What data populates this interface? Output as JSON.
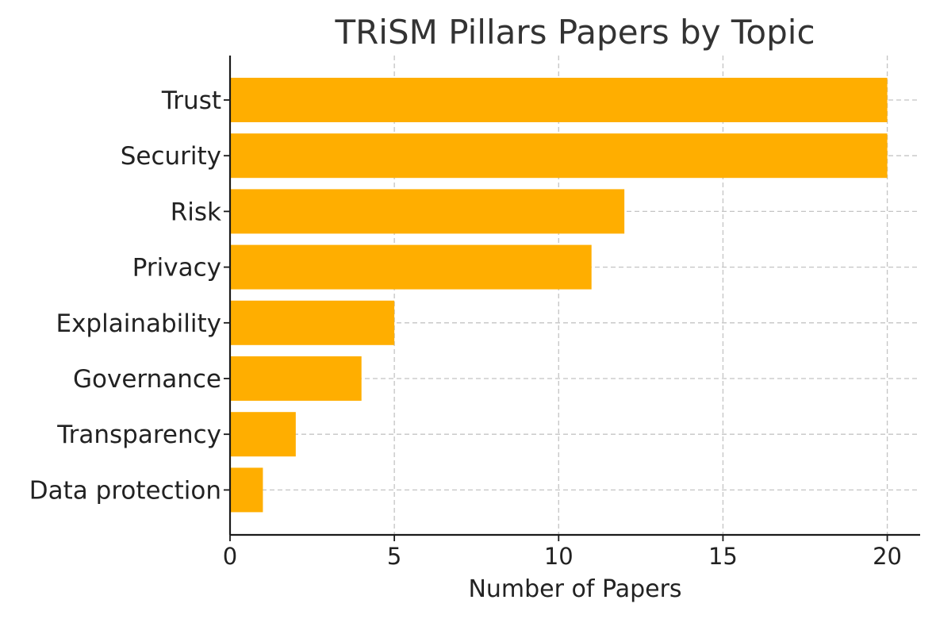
{
  "chart_data": {
    "type": "bar",
    "orientation": "horizontal",
    "title": "TRiSM Pillars Papers by Topic",
    "xlabel": "Number of Papers",
    "ylabel": "",
    "categories": [
      "Trust",
      "Security",
      "Risk",
      "Privacy",
      "Explainability",
      "Governance",
      "Transparency",
      "Data protection"
    ],
    "values": [
      20,
      20,
      12,
      11,
      5,
      4,
      2,
      1
    ],
    "xlim": [
      0,
      21
    ],
    "xticks": [
      0,
      5,
      10,
      15,
      20
    ],
    "grid": true,
    "bar_color": "#FFAE00"
  }
}
